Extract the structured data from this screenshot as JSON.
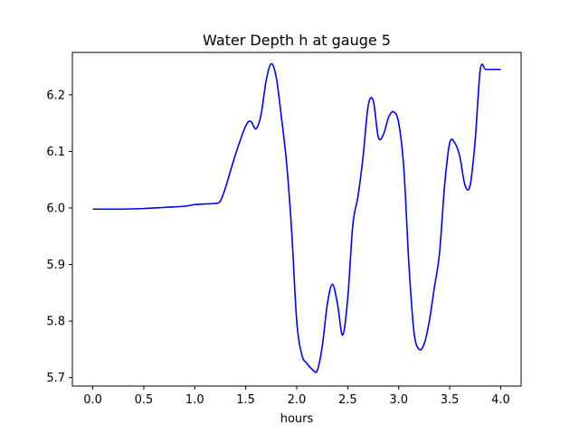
{
  "chart_data": {
    "type": "line",
    "title": "Water Depth h at gauge 5",
    "xlabel": "hours",
    "ylabel": "",
    "xlim": [
      -0.2,
      4.2
    ],
    "ylim": [
      5.685,
      6.275
    ],
    "xticks": [
      0.0,
      0.5,
      1.0,
      1.5,
      2.0,
      2.5,
      3.0,
      3.5,
      4.0
    ],
    "xtick_labels": [
      "0.0",
      "0.5",
      "1.0",
      "1.5",
      "2.0",
      "2.5",
      "3.0",
      "3.5",
      "4.0"
    ],
    "yticks": [
      5.7,
      5.8,
      5.9,
      6.0,
      6.1,
      6.2
    ],
    "ytick_labels": [
      "5.7",
      "5.8",
      "5.9",
      "6.0",
      "6.1",
      "6.2"
    ],
    "grid": false,
    "legend": "none",
    "series": [
      {
        "color": "#0000ff",
        "x": [
          0.0,
          0.3,
          0.5,
          0.7,
          0.9,
          1.0,
          1.1,
          1.2,
          1.25,
          1.3,
          1.4,
          1.5,
          1.55,
          1.6,
          1.65,
          1.7,
          1.75,
          1.8,
          1.85,
          1.9,
          1.95,
          2.0,
          2.05,
          2.1,
          2.15,
          2.2,
          2.25,
          2.3,
          2.35,
          2.4,
          2.45,
          2.5,
          2.55,
          2.6,
          2.65,
          2.7,
          2.75,
          2.8,
          2.85,
          2.9,
          2.95,
          3.0,
          3.05,
          3.1,
          3.15,
          3.2,
          3.25,
          3.3,
          3.35,
          3.4,
          3.45,
          3.5,
          3.55,
          3.6,
          3.65,
          3.7,
          3.75,
          3.8,
          3.85,
          3.9,
          3.95,
          4.0
        ],
        "y": [
          5.998,
          5.998,
          5.999,
          6.001,
          6.003,
          6.006,
          6.007,
          6.008,
          6.012,
          6.035,
          6.095,
          6.145,
          6.153,
          6.14,
          6.165,
          6.225,
          6.255,
          6.23,
          6.16,
          6.08,
          5.96,
          5.8,
          5.74,
          5.725,
          5.715,
          5.712,
          5.755,
          5.83,
          5.865,
          5.83,
          5.775,
          5.84,
          5.97,
          6.02,
          6.09,
          6.18,
          6.19,
          6.125,
          6.13,
          6.16,
          6.17,
          6.15,
          6.07,
          5.9,
          5.78,
          5.75,
          5.76,
          5.8,
          5.86,
          5.92,
          6.04,
          6.115,
          6.115,
          6.09,
          6.04,
          6.04,
          6.12,
          6.245,
          6.245,
          6.245,
          6.245,
          6.245
        ]
      }
    ]
  }
}
